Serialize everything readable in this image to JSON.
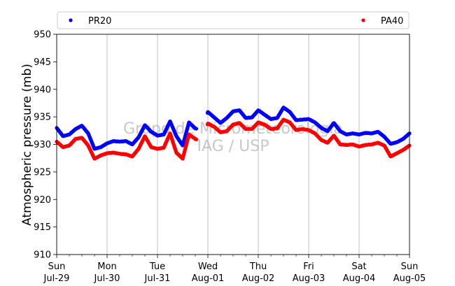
{
  "chart_data": {
    "type": "scatter",
    "ylabel": "Atmospheric pressure (mb)",
    "xlabel": "",
    "ylim": [
      910,
      950
    ],
    "yticks": [
      910,
      915,
      920,
      925,
      930,
      935,
      940,
      945,
      950
    ],
    "xlim": [
      "2018-07-29",
      "2018-08-05"
    ],
    "xticks": [
      {
        "day": "Sun",
        "date": "Jul-29"
      },
      {
        "day": "Mon",
        "date": "Jul-30"
      },
      {
        "day": "Tue",
        "date": "Jul-31"
      },
      {
        "day": "Wed",
        "date": "Aug-01"
      },
      {
        "day": "Thu",
        "date": "Aug-02"
      },
      {
        "day": "Fri",
        "date": "Aug-03"
      },
      {
        "day": "Sat",
        "date": "Aug-04"
      },
      {
        "day": "Sun",
        "date": "Aug-05"
      }
    ],
    "grid": "vertical",
    "legend_placement": "top (expanded)",
    "watermark": [
      "Grupo de Micrometeorologia",
      "IAG / USP"
    ],
    "series": [
      {
        "name": "PR20",
        "color": "#0000ff",
        "points": [
          [
            "2018-07-29 00:00",
            933.0
          ],
          [
            "2018-07-29 03:00",
            931.5
          ],
          [
            "2018-07-29 06:00",
            931.8
          ],
          [
            "2018-07-29 09:00",
            932.8
          ],
          [
            "2018-07-29 12:00",
            933.4
          ],
          [
            "2018-07-29 15:00",
            932.0
          ],
          [
            "2018-07-29 18:00",
            929.2
          ],
          [
            "2018-07-29 21:00",
            929.5
          ],
          [
            "2018-07-30 00:00",
            930.2
          ],
          [
            "2018-07-30 03:00",
            930.6
          ],
          [
            "2018-07-30 06:00",
            930.5
          ],
          [
            "2018-07-30 09:00",
            930.6
          ],
          [
            "2018-07-30 12:00",
            930.0
          ],
          [
            "2018-07-30 15:00",
            931.3
          ],
          [
            "2018-07-30 18:00",
            933.5
          ],
          [
            "2018-07-30 21:00",
            932.3
          ],
          [
            "2018-07-31 00:00",
            931.6
          ],
          [
            "2018-07-31 03:00",
            931.8
          ],
          [
            "2018-07-31 06:00",
            934.2
          ],
          [
            "2018-07-31 09:00",
            931.5
          ],
          [
            "2018-07-31 12:00",
            929.8
          ],
          [
            "2018-07-31 15:00",
            934.0
          ],
          [
            "2018-07-31 18:00",
            932.9
          ],
          [
            "2018-07-31 21:00",
            932.6
          ],
          [
            "2018-08-01 00:00",
            935.9
          ],
          [
            "2018-08-01 03:00",
            934.9
          ],
          [
            "2018-08-01 06:00",
            933.9
          ],
          [
            "2018-08-01 09:00",
            934.8
          ],
          [
            "2018-08-01 12:00",
            936.0
          ],
          [
            "2018-08-01 15:00",
            936.2
          ],
          [
            "2018-08-01 18:00",
            934.8
          ],
          [
            "2018-08-01 21:00",
            934.9
          ],
          [
            "2018-08-02 00:00",
            936.2
          ],
          [
            "2018-08-02 03:00",
            935.4
          ],
          [
            "2018-08-02 06:00",
            934.6
          ],
          [
            "2018-08-02 09:00",
            934.8
          ],
          [
            "2018-08-02 12:00",
            936.7
          ],
          [
            "2018-08-02 15:00",
            935.9
          ],
          [
            "2018-08-02 18:00",
            934.4
          ],
          [
            "2018-08-02 21:00",
            934.5
          ],
          [
            "2018-08-03 00:00",
            934.6
          ],
          [
            "2018-08-03 03:00",
            934.0
          ],
          [
            "2018-08-03 06:00",
            933.0
          ],
          [
            "2018-08-03 09:00",
            932.4
          ],
          [
            "2018-08-03 12:00",
            933.9
          ],
          [
            "2018-08-03 15:00",
            932.4
          ],
          [
            "2018-08-03 18:00",
            931.8
          ],
          [
            "2018-08-03 21:00",
            932.0
          ],
          [
            "2018-08-04 00:00",
            931.8
          ],
          [
            "2018-08-04 03:00",
            932.1
          ],
          [
            "2018-08-04 06:00",
            932.0
          ],
          [
            "2018-08-04 09:00",
            932.3
          ],
          [
            "2018-08-04 12:00",
            931.4
          ],
          [
            "2018-08-04 15:00",
            930.1
          ],
          [
            "2018-08-04 18:00",
            930.4
          ],
          [
            "2018-08-04 21:00",
            931.0
          ],
          [
            "2018-08-05 00:00",
            932.0
          ]
        ]
      },
      {
        "name": "PA40",
        "color": "#ff0000",
        "points": [
          [
            "2018-07-29 00:00",
            930.5
          ],
          [
            "2018-07-29 03:00",
            929.5
          ],
          [
            "2018-07-29 06:00",
            929.8
          ],
          [
            "2018-07-29 09:00",
            931.0
          ],
          [
            "2018-07-29 12:00",
            931.2
          ],
          [
            "2018-07-29 15:00",
            929.8
          ],
          [
            "2018-07-29 18:00",
            927.4
          ],
          [
            "2018-07-29 21:00",
            928.0
          ],
          [
            "2018-07-30 00:00",
            928.4
          ],
          [
            "2018-07-30 03:00",
            928.5
          ],
          [
            "2018-07-30 06:00",
            928.3
          ],
          [
            "2018-07-30 09:00",
            928.2
          ],
          [
            "2018-07-30 12:00",
            927.8
          ],
          [
            "2018-07-30 15:00",
            929.2
          ],
          [
            "2018-07-30 18:00",
            931.5
          ],
          [
            "2018-07-30 21:00",
            929.5
          ],
          [
            "2018-07-31 00:00",
            929.2
          ],
          [
            "2018-07-31 03:00",
            929.4
          ],
          [
            "2018-07-31 06:00",
            932.0
          ],
          [
            "2018-07-31 09:00",
            928.5
          ],
          [
            "2018-07-31 12:00",
            927.4
          ],
          [
            "2018-07-31 15:00",
            931.8
          ],
          [
            "2018-07-31 18:00",
            931.0
          ],
          [
            "2018-07-31 21:00",
            930.4
          ],
          [
            "2018-08-01 00:00",
            933.8
          ],
          [
            "2018-08-01 03:00",
            933.2
          ],
          [
            "2018-08-01 06:00",
            932.2
          ],
          [
            "2018-08-01 09:00",
            932.4
          ],
          [
            "2018-08-01 12:00",
            933.6
          ],
          [
            "2018-08-01 15:00",
            933.9
          ],
          [
            "2018-08-01 18:00",
            932.8
          ],
          [
            "2018-08-01 21:00",
            932.8
          ],
          [
            "2018-08-02 00:00",
            934.0
          ],
          [
            "2018-08-02 03:00",
            933.6
          ],
          [
            "2018-08-02 06:00",
            932.8
          ],
          [
            "2018-08-02 09:00",
            932.9
          ],
          [
            "2018-08-02 12:00",
            934.5
          ],
          [
            "2018-08-02 15:00",
            934.0
          ],
          [
            "2018-08-02 18:00",
            932.6
          ],
          [
            "2018-08-02 21:00",
            932.8
          ],
          [
            "2018-08-03 00:00",
            932.6
          ],
          [
            "2018-08-03 03:00",
            932.0
          ],
          [
            "2018-08-03 06:00",
            930.8
          ],
          [
            "2018-08-03 09:00",
            930.3
          ],
          [
            "2018-08-03 12:00",
            931.6
          ],
          [
            "2018-08-03 15:00",
            930.0
          ],
          [
            "2018-08-03 18:00",
            929.9
          ],
          [
            "2018-08-03 21:00",
            930.0
          ],
          [
            "2018-08-04 00:00",
            929.6
          ],
          [
            "2018-08-04 03:00",
            929.9
          ],
          [
            "2018-08-04 06:00",
            930.0
          ],
          [
            "2018-08-04 09:00",
            930.3
          ],
          [
            "2018-08-04 12:00",
            929.8
          ],
          [
            "2018-08-04 15:00",
            927.8
          ],
          [
            "2018-08-04 18:00",
            928.4
          ],
          [
            "2018-08-04 21:00",
            929.0
          ],
          [
            "2018-08-05 00:00",
            929.8
          ]
        ]
      }
    ]
  }
}
